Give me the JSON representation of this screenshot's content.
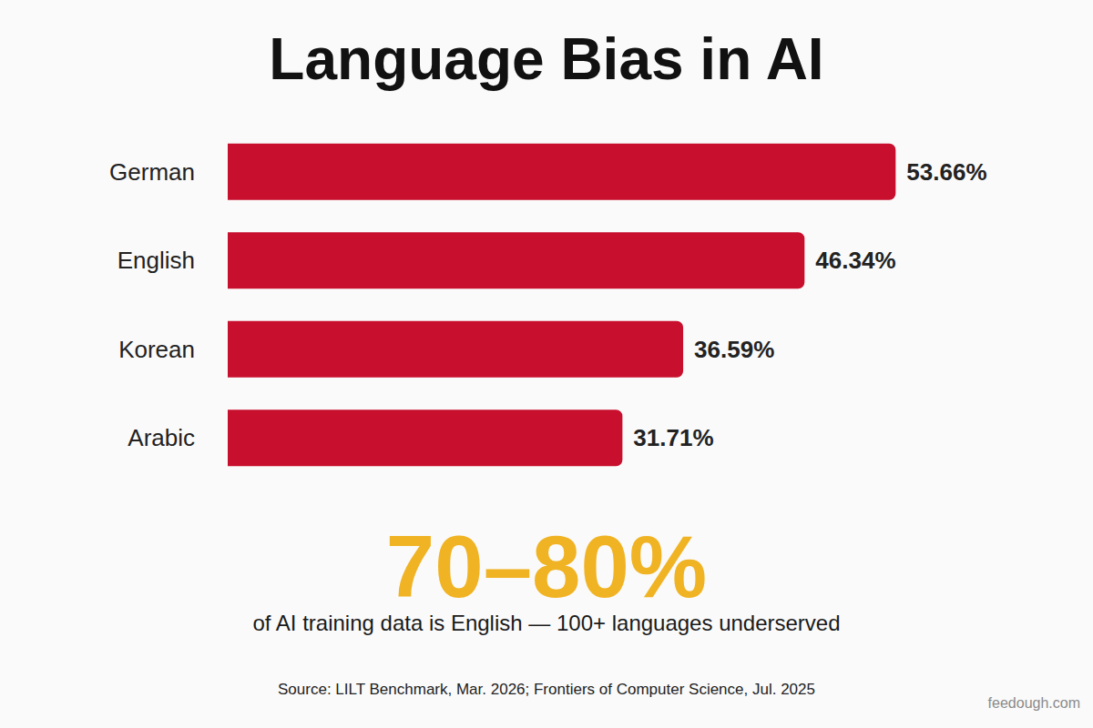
{
  "chart_data": {
    "type": "bar",
    "title": "Language Bias in AI",
    "orientation": "horizontal",
    "categories": [
      "German",
      "English",
      "Korean",
      "Arabic"
    ],
    "values": [
      53.66,
      46.34,
      36.59,
      31.71
    ],
    "value_labels": [
      "53.66%",
      "46.34%",
      "36.59%",
      "31.71%"
    ],
    "data_labels": true,
    "color": "#c8102e",
    "xlim": [
      0,
      60
    ],
    "xticks": [
      0,
      10,
      20,
      30,
      40,
      50,
      60
    ],
    "tick_labels": "y",
    "grid": false,
    "annotations": [
      "70–80%",
      "of AI training data is English — 100+ languages underserved",
      "Source: LILT Benchmark, Mar. 2026; Frontiers of Computer Science, Jul. 2025",
      "feedough.com"
    ]
  }
}
